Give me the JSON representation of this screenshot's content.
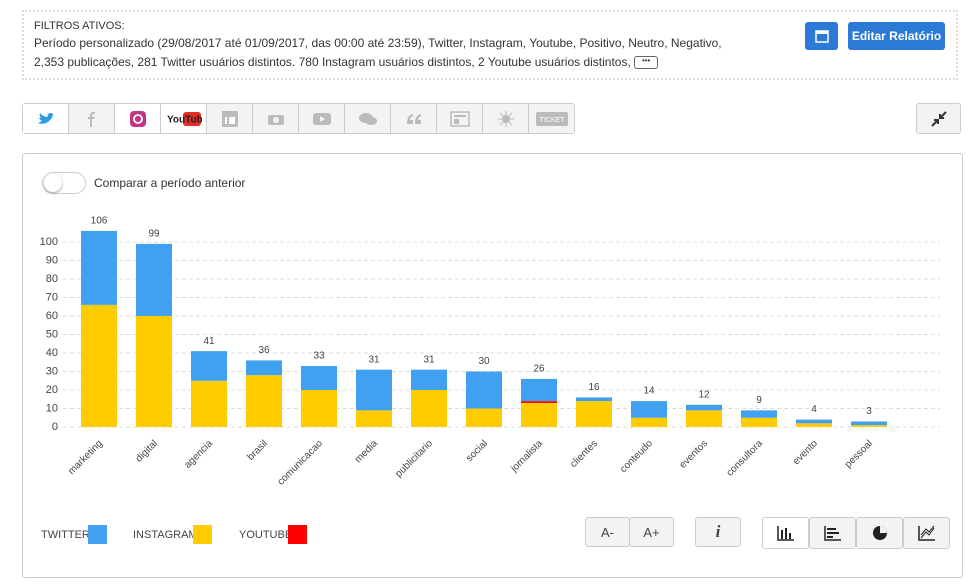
{
  "filters": {
    "title": "FILTROS ATIVOS:",
    "lines": [
      "Período personalizado (29/08/2017 até 01/09/2017, das 00:00 até 23:59), Twitter, Instagram, Youtube, Positivo, Neutro, Negativo,",
      "2,353 publicações, 281 Twitter usuários distintos. 780 Instagram usuários distintos, 2 Youtube usuários distintos,"
    ]
  },
  "edit_button": "Editar Relatório",
  "tabs": {
    "youtube": "YouTube",
    "ticket": "TICKET"
  },
  "compare_label": "Comparar a período anterior",
  "buttons": {
    "font_smaller": "A-",
    "font_larger": "A+",
    "info": "i"
  },
  "chart_data": {
    "type": "bar",
    "stacked": true,
    "categories": [
      "marketing",
      "digital",
      "agencia",
      "brasil",
      "comunicacao",
      "media",
      "publicitario",
      "social",
      "jornalista",
      "clientes",
      "conteudo",
      "eventos",
      "consultora",
      "evento",
      "pessoal"
    ],
    "series": [
      {
        "name": "TWITTER",
        "color": "#42a0f0",
        "values": [
          40,
          39,
          16,
          8,
          13,
          22,
          11,
          20,
          12,
          2,
          9,
          3,
          4,
          2,
          2
        ]
      },
      {
        "name": "INSTAGRAM",
        "color": "#ffcc00",
        "values": [
          66,
          60,
          25,
          28,
          20,
          9,
          20,
          10,
          13,
          14,
          5,
          9,
          5,
          2,
          1
        ]
      },
      {
        "name": "YOUTUBE",
        "color": "#ff0000",
        "values": [
          0,
          0,
          0,
          0,
          0,
          0,
          0,
          0,
          1,
          0,
          0,
          0,
          0,
          0,
          0
        ]
      }
    ],
    "totals": [
      106,
      99,
      41,
      36,
      33,
      31,
      31,
      30,
      26,
      16,
      14,
      12,
      9,
      4,
      3
    ],
    "ylim": [
      0,
      110
    ],
    "yticks": [
      0,
      10,
      20,
      30,
      40,
      50,
      60,
      70,
      80,
      90,
      100
    ],
    "grid": true
  }
}
